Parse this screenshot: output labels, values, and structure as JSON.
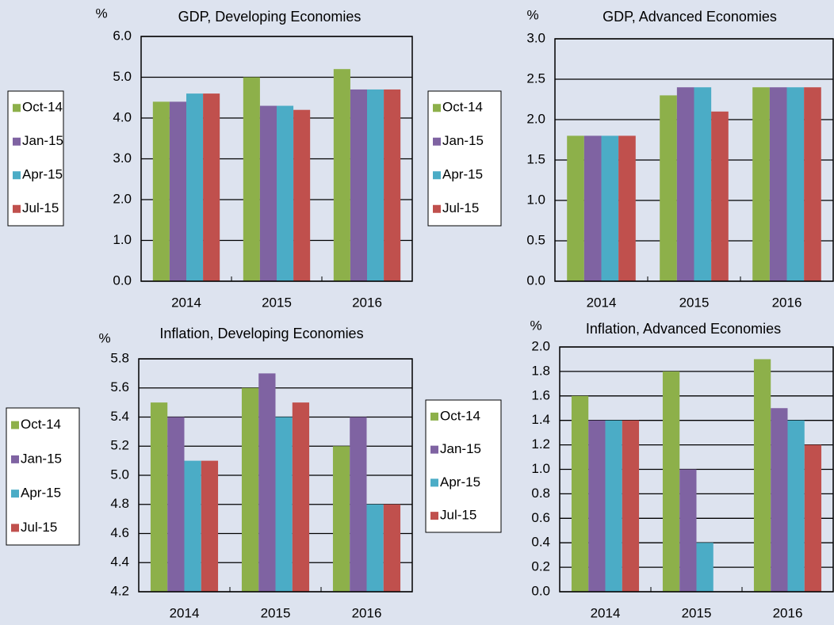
{
  "chart_data": [
    {
      "type": "bar",
      "title": "GDP, Developing Economies",
      "y_label": "%",
      "categories": [
        "2014",
        "2015",
        "2016"
      ],
      "series": [
        {
          "name": "Oct-14",
          "color": "#8db04a",
          "values": [
            4.4,
            5.0,
            5.2
          ]
        },
        {
          "name": "Jan-15",
          "color": "#7f63a2",
          "values": [
            4.4,
            4.3,
            4.7
          ]
        },
        {
          "name": "Apr-15",
          "color": "#4bacc6",
          "values": [
            4.6,
            4.3,
            4.7
          ]
        },
        {
          "name": "Jul-15",
          "color": "#c0504d",
          "values": [
            4.6,
            4.2,
            4.7
          ]
        }
      ],
      "ylim": [
        0,
        6
      ],
      "yticks": [
        {
          "value": 0,
          "label": "0.0"
        },
        {
          "value": 1,
          "label": "1.0"
        },
        {
          "value": 2,
          "label": "2.0"
        },
        {
          "value": 3,
          "label": "3.0"
        },
        {
          "value": 4,
          "label": "4.0"
        },
        {
          "value": 5,
          "label": "5.0"
        },
        {
          "value": 6,
          "label": "6.0"
        }
      ],
      "grid": true
    },
    {
      "type": "bar",
      "title": "GDP, Advanced Economies",
      "y_label": "%",
      "categories": [
        "2014",
        "2015",
        "2016"
      ],
      "series": [
        {
          "name": "Oct-14",
          "color": "#8db04a",
          "values": [
            1.8,
            2.3,
            2.4
          ]
        },
        {
          "name": "Jan-15",
          "color": "#7f63a2",
          "values": [
            1.8,
            2.4,
            2.4
          ]
        },
        {
          "name": "Apr-15",
          "color": "#4bacc6",
          "values": [
            1.8,
            2.4,
            2.4
          ]
        },
        {
          "name": "Jul-15",
          "color": "#c0504d",
          "values": [
            1.8,
            2.1,
            2.4
          ]
        }
      ],
      "ylim": [
        0,
        3
      ],
      "yticks": [
        {
          "value": 0,
          "label": "0.0"
        },
        0.5,
        {
          "value": 1,
          "label": "1.0"
        },
        1.5,
        {
          "value": 2,
          "label": "2.0"
        },
        2.5,
        {
          "value": 3,
          "label": "3.0"
        }
      ],
      "grid": true
    },
    {
      "type": "bar",
      "title": "Inflation, Developing Economies",
      "y_label": "%",
      "categories": [
        "2014",
        "2015",
        "2016"
      ],
      "series": [
        {
          "name": "Oct-14",
          "color": "#8db04a",
          "values": [
            5.5,
            5.6,
            5.2
          ]
        },
        {
          "name": "Jan-15",
          "color": "#7f63a2",
          "values": [
            5.4,
            5.7,
            5.4
          ]
        },
        {
          "name": "Apr-15",
          "color": "#4bacc6",
          "values": [
            5.1,
            5.4,
            4.8
          ]
        },
        {
          "name": "Jul-15",
          "color": "#c0504d",
          "values": [
            5.1,
            5.5,
            4.8
          ]
        }
      ],
      "ylim": [
        4.2,
        5.8
      ],
      "yticks": [
        4.2,
        4.4,
        4.6,
        4.8,
        {
          "value": 5,
          "label": "5.0"
        },
        5.2,
        5.4,
        5.6,
        5.8
      ],
      "grid": true
    },
    {
      "type": "bar",
      "title": "Inflation, Advanced Economies",
      "y_label": "%",
      "categories": [
        "2014",
        "2015",
        "2016"
      ],
      "series": [
        {
          "name": "Oct-14",
          "color": "#8db04a",
          "values": [
            1.6,
            1.8,
            1.9
          ]
        },
        {
          "name": "Jan-15",
          "color": "#7f63a2",
          "values": [
            1.4,
            1.0,
            1.5
          ]
        },
        {
          "name": "Apr-15",
          "color": "#4bacc6",
          "values": [
            1.4,
            0.4,
            1.4
          ]
        },
        {
          "name": "Jul-15",
          "color": "#c0504d",
          "values": [
            1.4,
            0,
            1.2
          ]
        }
      ],
      "ylim": [
        0,
        2
      ],
      "yticks": [
        {
          "value": 0,
          "label": "0.0"
        },
        0.2,
        0.4,
        0.6,
        0.8,
        {
          "value": 1,
          "label": "1.0"
        },
        1.2,
        1.4,
        1.6,
        1.8,
        {
          "value": 2,
          "label": "2.0"
        }
      ],
      "grid": true
    }
  ]
}
